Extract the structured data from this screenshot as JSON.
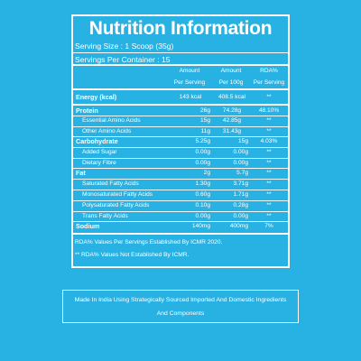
{
  "title": "Nutrition Information",
  "serving_size": "Serving Size : 1 Scoop (35g)",
  "servings_per_container": "Servings Per Container : 15",
  "columns": {
    "amount_serving_1": "Amount",
    "amount_serving_2": "Per Serving",
    "amount_100g_1": "Amount",
    "amount_100g_2": "Per 100g",
    "rda_1": "RDA%",
    "rda_2": "Per Serving"
  },
  "rows": [
    {
      "name": "Energy (kcal)",
      "v1": "143 kcal",
      "v2": "408.5 kcal",
      "v3": "**"
    },
    {
      "name": "Protein",
      "v1": "26g",
      "v2": "74.28g",
      "v3": "48.10%"
    },
    {
      "name": "Essential Amino Acids",
      "v1": "15g",
      "v2": "42.85g",
      "v3": "**"
    },
    {
      "name": "Other Amino Acids",
      "v1": "11g",
      "v2": "31.43g",
      "v3": "**"
    },
    {
      "name": "Carbohydrate",
      "v1": "5.25g",
      "v2": "15g",
      "v3": "4.03%"
    },
    {
      "name": "Added Sugar",
      "v1": "0.00g",
      "v2": "0.00g",
      "v3": "**"
    },
    {
      "name": "Dietary Fibre",
      "v1": "0.00g",
      "v2": "0.00g",
      "v3": "**"
    },
    {
      "name": "Fat",
      "v1": "2g",
      "v2": "5.7g",
      "v3": "**"
    },
    {
      "name": "Saturated Fatty Acids",
      "v1": "1.30g",
      "v2": "3.71g",
      "v3": "**"
    },
    {
      "name": "Monosaturated Fatty Acids",
      "v1": "0.60g",
      "v2": "1.71g",
      "v3": "**"
    },
    {
      "name": "Polysaturated Fatty Acids",
      "v1": "0.10g",
      "v2": "0.28g",
      "v3": "**"
    },
    {
      "name": "Trans Fatty Acids",
      "v1": "0.00g",
      "v2": "0.00g",
      "v3": "**"
    },
    {
      "name": "Sodium",
      "v1": "140mg",
      "v2": "400mg",
      "v3": "7%"
    }
  ],
  "notes": {
    "rda": "RDA% Values Per Servings Established By ICMR 2020.",
    "not_established": "** RDA% Values Not Established By ICMR."
  },
  "footer": "Made In India Using Strategically Sourced Imported And Domestic Ingredients And Components",
  "colors": {
    "background": "#28b2e4",
    "foreground": "#ffffff"
  }
}
